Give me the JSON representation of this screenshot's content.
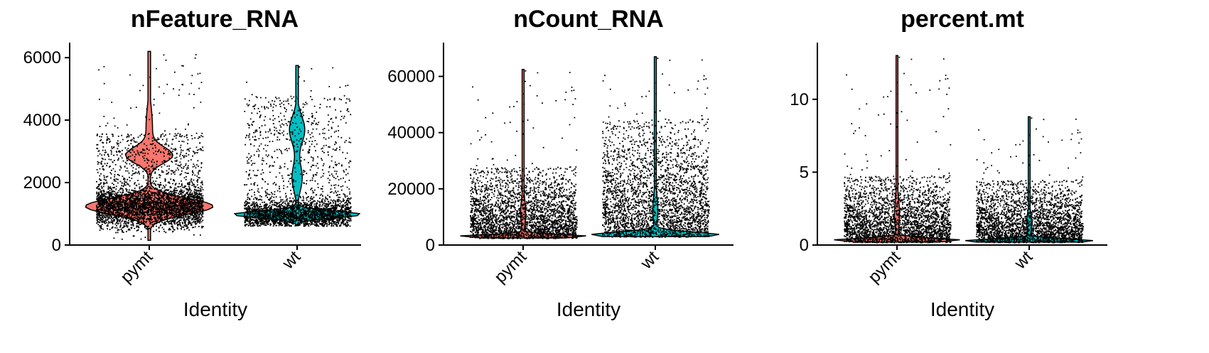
{
  "chart_data": [
    {
      "type": "violin",
      "title": "nFeature_RNA",
      "xlabel": "Identity",
      "ylabel": "",
      "categories": [
        "pymt",
        "wt"
      ],
      "colors": [
        "#F8766D",
        "#00BFC4"
      ],
      "ylim": [
        0,
        6300
      ],
      "yticks": [
        0,
        2000,
        4000,
        6000
      ],
      "series": [
        {
          "category": "pymt",
          "max": 6200,
          "min": 150,
          "mode": 1250,
          "secondary_mode": 2900,
          "typical_range": [
            500,
            3600
          ]
        },
        {
          "category": "wt",
          "max": 5750,
          "min": 620,
          "mode": 1000,
          "secondary_mode": 3900,
          "typical_range": [
            600,
            4800
          ]
        }
      ]
    },
    {
      "type": "violin",
      "title": "nCount_RNA",
      "xlabel": "Identity",
      "ylabel": "",
      "categories": [
        "pymt",
        "wt"
      ],
      "colors": [
        "#F8766D",
        "#00BFC4"
      ],
      "ylim": [
        0,
        70000
      ],
      "yticks": [
        0,
        20000,
        40000,
        60000
      ],
      "series": [
        {
          "category": "pymt",
          "max": 62500,
          "min": 2500,
          "mode": 3500,
          "typical_range": [
            2500,
            28000
          ]
        },
        {
          "category": "wt",
          "max": 67000,
          "min": 3000,
          "mode": 5000,
          "typical_range": [
            3000,
            45000
          ]
        }
      ]
    },
    {
      "type": "violin",
      "title": "percent.mt",
      "xlabel": "Identity",
      "ylabel": "",
      "categories": [
        "pymt",
        "wt"
      ],
      "colors": [
        "#F8766D",
        "#00BFC4"
      ],
      "ylim": [
        0,
        13.5
      ],
      "yticks": [
        0,
        5,
        10
      ],
      "yticklabels": [
        "0",
        "5",
        "10"
      ],
      "series": [
        {
          "category": "pymt",
          "max": 13,
          "min": 0.2,
          "mode": 0.3,
          "typical_range": [
            0.2,
            4.8
          ]
        },
        {
          "category": "wt",
          "max": 8.8,
          "min": 0.2,
          "mode": 0.3,
          "typical_range": [
            0.2,
            4.5
          ]
        }
      ]
    }
  ]
}
